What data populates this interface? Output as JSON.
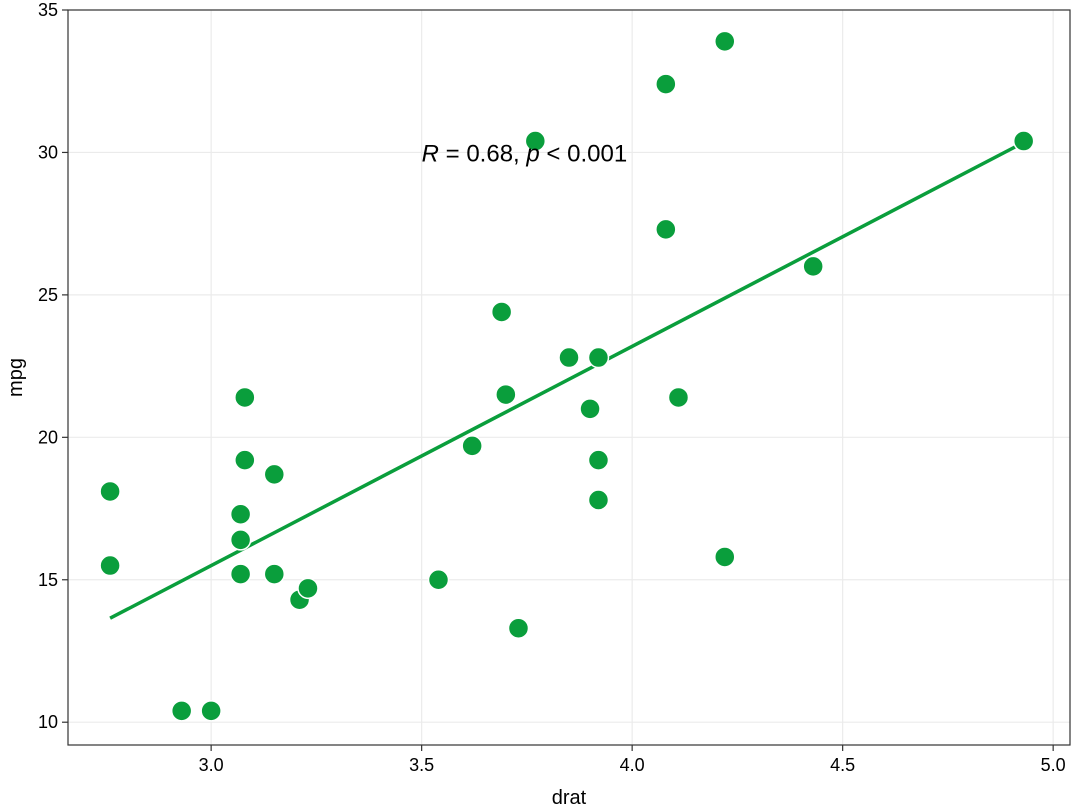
{
  "chart_data": {
    "type": "scatter",
    "xlabel": "drat",
    "ylabel": "mpg",
    "xlim": [
      2.66,
      5.04
    ],
    "ylim": [
      9.2,
      35.0
    ],
    "x_ticks": [
      3.0,
      3.5,
      4.0,
      4.5,
      5.0
    ],
    "x_tick_labels": [
      "3.0",
      "3.5",
      "4.0",
      "4.5",
      "5.0"
    ],
    "y_ticks": [
      10,
      15,
      20,
      25,
      30,
      35
    ],
    "y_tick_labels": [
      "10",
      "15",
      "20",
      "25",
      "30",
      "35"
    ],
    "grid": true,
    "point_color": "#0a9e3c",
    "line_color": "#0a9e3c",
    "points": [
      {
        "x": 3.9,
        "y": 21.0
      },
      {
        "x": 3.9,
        "y": 21.0
      },
      {
        "x": 3.85,
        "y": 22.8
      },
      {
        "x": 3.08,
        "y": 21.4
      },
      {
        "x": 3.15,
        "y": 18.7
      },
      {
        "x": 2.76,
        "y": 18.1
      },
      {
        "x": 3.21,
        "y": 14.3
      },
      {
        "x": 3.69,
        "y": 24.4
      },
      {
        "x": 3.92,
        "y": 22.8
      },
      {
        "x": 3.92,
        "y": 19.2
      },
      {
        "x": 3.92,
        "y": 17.8
      },
      {
        "x": 3.07,
        "y": 16.4
      },
      {
        "x": 3.07,
        "y": 17.3
      },
      {
        "x": 3.07,
        "y": 15.2
      },
      {
        "x": 2.93,
        "y": 10.4
      },
      {
        "x": 3.0,
        "y": 10.4
      },
      {
        "x": 3.23,
        "y": 14.7
      },
      {
        "x": 4.08,
        "y": 32.4
      },
      {
        "x": 4.93,
        "y": 30.4
      },
      {
        "x": 4.22,
        "y": 33.9
      },
      {
        "x": 3.7,
        "y": 21.5
      },
      {
        "x": 2.76,
        "y": 15.5
      },
      {
        "x": 3.15,
        "y": 15.2
      },
      {
        "x": 3.73,
        "y": 13.3
      },
      {
        "x": 3.08,
        "y": 19.2
      },
      {
        "x": 4.08,
        "y": 27.3
      },
      {
        "x": 4.43,
        "y": 26.0
      },
      {
        "x": 3.77,
        "y": 30.4
      },
      {
        "x": 4.22,
        "y": 15.8
      },
      {
        "x": 3.62,
        "y": 19.7
      },
      {
        "x": 3.54,
        "y": 15.0
      },
      {
        "x": 4.11,
        "y": 21.4
      }
    ],
    "fit_line": {
      "x1": 2.76,
      "y1": 13.65,
      "x2": 4.93,
      "y2": 30.35
    },
    "annotation": {
      "r_symbol": "R",
      "r_text": " = 0.68, ",
      "p_symbol": "p",
      "p_text": " < 0.001",
      "x": 3.5,
      "y": 30.0
    }
  }
}
